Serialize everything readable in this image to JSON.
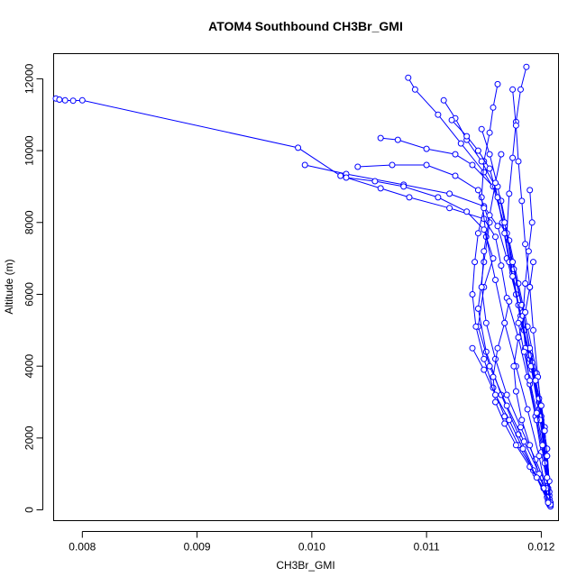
{
  "chart_data": {
    "type": "line",
    "title": "ATOM4 Southbound CH3Br_GMI",
    "xlabel": "CH3Br_GMI",
    "ylabel": "Altitude (m)",
    "xlim": [
      0.00775,
      0.01215
    ],
    "ylim": [
      -300,
      12700
    ],
    "x_ticks": [
      0.008,
      0.009,
      0.01,
      0.011,
      0.012
    ],
    "x_tick_labels": [
      "0.008",
      "0.009",
      "0.010",
      "0.011",
      "0.012"
    ],
    "y_ticks": [
      0,
      2000,
      4000,
      6000,
      8000,
      10000,
      12000
    ],
    "y_tick_labels": [
      "0",
      "2000",
      "4000",
      "6000",
      "8000",
      "10000",
      "12000"
    ],
    "marker": "open-circle",
    "line_color": "#0000ff",
    "grid": false,
    "legend": "none",
    "series": [
      {
        "x": [
          0.00777,
          0.0078,
          0.00785,
          0.00792,
          0.008,
          0.00988,
          0.01025,
          0.0106,
          0.01085,
          0.0112,
          0.0115,
          0.0116,
          0.01165,
          0.0117,
          0.0118,
          0.01188,
          0.01195,
          0.012,
          0.01205,
          0.01208
        ],
        "y": [
          11450,
          11420,
          11400,
          11390,
          11400,
          10080,
          9300,
          8950,
          8700,
          8400,
          8100,
          7600,
          6800,
          5900,
          4800,
          3700,
          2600,
          1600,
          800,
          150
        ]
      },
      {
        "x": [
          0.00994,
          0.0103,
          0.0108,
          0.0112,
          0.0115,
          0.01162,
          0.0117,
          0.01178,
          0.01185,
          0.01192,
          0.01198,
          0.01205,
          0.01208
        ],
        "y": [
          9600,
          9350,
          9050,
          8800,
          8450,
          7900,
          7000,
          6000,
          5000,
          3900,
          2800,
          1500,
          200
        ]
      },
      {
        "x": [
          0.01084,
          0.0109,
          0.0111,
          0.0113,
          0.0115,
          0.01165,
          0.01172,
          0.0118,
          0.01188,
          0.01196,
          0.01203,
          0.01207
        ],
        "y": [
          12030,
          11700,
          11000,
          10200,
          9400,
          8600,
          7500,
          6300,
          5100,
          3800,
          2300,
          300
        ]
      },
      {
        "x": [
          0.01187,
          0.01182,
          0.01178,
          0.01175,
          0.01172,
          0.0117,
          0.01175,
          0.01182,
          0.0119,
          0.01198,
          0.01205,
          0.01208
        ],
        "y": [
          12330,
          11700,
          10800,
          9800,
          8800,
          7700,
          6600,
          5400,
          4200,
          3000,
          1700,
          100
        ]
      },
      {
        "x": [
          0.01162,
          0.01158,
          0.01155,
          0.0115,
          0.01148,
          0.01152,
          0.0116,
          0.01168,
          0.01178,
          0.01188,
          0.01198,
          0.01206
        ],
        "y": [
          11850,
          11200,
          10500,
          9700,
          8700,
          7600,
          6400,
          5200,
          4000,
          2800,
          1500,
          250
        ]
      },
      {
        "x": [
          0.0104,
          0.0107,
          0.011,
          0.01125,
          0.01145,
          0.01155,
          0.0115,
          0.01145,
          0.01152,
          0.01165,
          0.0118,
          0.01195,
          0.01207
        ],
        "y": [
          9550,
          9600,
          9600,
          9300,
          8900,
          8000,
          6900,
          5600,
          4400,
          3200,
          2100,
          1000,
          150
        ]
      },
      {
        "x": [
          0.0106,
          0.01075,
          0.011,
          0.01125,
          0.0114,
          0.01158,
          0.01168,
          0.01176,
          0.01184,
          0.01192,
          0.012,
          0.01207
        ],
        "y": [
          10350,
          10300,
          10050,
          9900,
          9600,
          9000,
          7900,
          6700,
          5500,
          4100,
          2500,
          300
        ]
      },
      {
        "x": [
          0.01115,
          0.01125,
          0.01135,
          0.01148,
          0.0116,
          0.01166,
          0.01172,
          0.0118,
          0.0119,
          0.012,
          0.01207
        ],
        "y": [
          11400,
          10900,
          10300,
          9700,
          9000,
          8000,
          6900,
          5700,
          4300,
          2600,
          400
        ]
      },
      {
        "x": [
          0.01122,
          0.01135,
          0.01145,
          0.01155,
          0.01162,
          0.01168,
          0.01175,
          0.01182,
          0.01191,
          0.01199,
          0.01207
        ],
        "y": [
          10850,
          10400,
          10000,
          9500,
          8700,
          7700,
          6500,
          5300,
          4000,
          2500,
          500
        ]
      },
      {
        "x": [
          0.0103,
          0.01055,
          0.0108,
          0.0111,
          0.01135,
          0.0115,
          0.01158,
          0.0115,
          0.01145,
          0.01155,
          0.0117,
          0.01185,
          0.012,
          0.01207
        ],
        "y": [
          9250,
          9150,
          9000,
          8700,
          8300,
          7800,
          7000,
          6200,
          5100,
          4000,
          2900,
          1900,
          900,
          200
        ]
      },
      {
        "x": [
          0.01148,
          0.01155,
          0.01162,
          0.01168,
          0.01175,
          0.01183,
          0.0119,
          0.01198,
          0.01205,
          0.01208
        ],
        "y": [
          10600,
          9900,
          9000,
          8000,
          6900,
          5700,
          4500,
          3100,
          1700,
          100
        ]
      },
      {
        "x": [
          0.01175,
          0.01178,
          0.0118,
          0.01183,
          0.01186,
          0.0119,
          0.01193,
          0.01197,
          0.01202,
          0.01206
        ],
        "y": [
          11700,
          10700,
          9700,
          8600,
          7400,
          6200,
          5000,
          3700,
          2200,
          600
        ]
      },
      {
        "x": [
          0.0119,
          0.01192,
          0.01189,
          0.01186,
          0.01184,
          0.01186,
          0.0119,
          0.01196,
          0.01203,
          0.01207
        ],
        "y": [
          8900,
          8000,
          7200,
          6300,
          5400,
          4500,
          3500,
          2500,
          1300,
          300
        ]
      },
      {
        "x": [
          0.01165,
          0.0116,
          0.01155,
          0.0115,
          0.01148,
          0.01152,
          0.0116,
          0.0117,
          0.01182,
          0.01195,
          0.01205
        ],
        "y": [
          9900,
          9100,
          8200,
          7200,
          6200,
          5200,
          4200,
          3200,
          2300,
          1400,
          600
        ]
      },
      {
        "x": [
          0.0115,
          0.01145,
          0.01142,
          0.0114,
          0.01143,
          0.0115,
          0.01158,
          0.01168,
          0.0118,
          0.01193,
          0.01205
        ],
        "y": [
          8400,
          7700,
          6900,
          6000,
          5100,
          4200,
          3400,
          2600,
          1800,
          1100,
          350
        ]
      },
      {
        "x": [
          0.01193,
          0.0119,
          0.01186,
          0.0118,
          0.01176,
          0.01178,
          0.01183,
          0.0119,
          0.01198,
          0.01206
        ],
        "y": [
          6900,
          6200,
          5500,
          4800,
          4000,
          3300,
          2500,
          1800,
          1000,
          250
        ]
      },
      {
        "x": [
          0.01172,
          0.01168,
          0.01162,
          0.01158,
          0.0116,
          0.01168,
          0.01178,
          0.0119,
          0.01202,
          0.01208
        ],
        "y": [
          5800,
          5200,
          4500,
          3700,
          3000,
          2400,
          1800,
          1200,
          600,
          150
        ]
      },
      {
        "x": [
          0.01195,
          0.012,
          0.01203,
          0.01205,
          0.01207,
          0.01208
        ],
        "y": [
          3600,
          2900,
          2200,
          1500,
          800,
          200
        ]
      },
      {
        "x": [
          0.0118,
          0.01185,
          0.0119,
          0.01196,
          0.01201,
          0.01205,
          0.01208
        ],
        "y": [
          5200,
          4400,
          3600,
          2700,
          1800,
          900,
          150
        ]
      },
      {
        "x": [
          0.0114,
          0.0115,
          0.0116,
          0.01172,
          0.01184,
          0.01196,
          0.01206
        ],
        "y": [
          4500,
          3900,
          3200,
          2500,
          1700,
          900,
          200
        ]
      }
    ]
  }
}
